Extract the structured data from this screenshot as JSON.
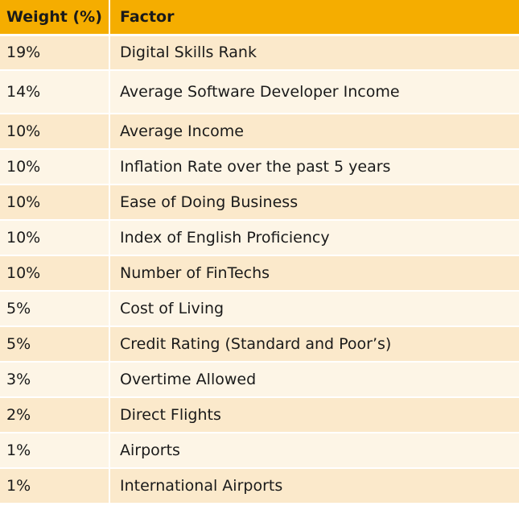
{
  "table": {
    "headers": {
      "weight": "Weight (%)",
      "factor": "Factor"
    },
    "rows": [
      {
        "weight": "19%",
        "factor": "Digital Skills Rank"
      },
      {
        "weight": "14%",
        "factor": "Average Software Developer Income"
      },
      {
        "weight": "10%",
        "factor": "Average Income"
      },
      {
        "weight": "10%",
        "factor": "Inflation Rate over the past 5 years"
      },
      {
        "weight": "10%",
        "factor": "Ease of Doing Business"
      },
      {
        "weight": "10%",
        "factor": "Index of English Proficiency"
      },
      {
        "weight": "10%",
        "factor": "Number of FinTechs"
      },
      {
        "weight": "5%",
        "factor": "Cost of Living"
      },
      {
        "weight": "5%",
        "factor": "Credit Rating (Standard and Poor’s)"
      },
      {
        "weight": "3%",
        "factor": "Overtime Allowed"
      },
      {
        "weight": "2%",
        "factor": "Direct Flights"
      },
      {
        "weight": "1%",
        "factor": "Airports"
      },
      {
        "weight": "1%",
        "factor": "International Airports"
      }
    ],
    "colors": {
      "header_bg": "#f5ad00",
      "row_dark": "#fbe9cb",
      "row_light": "#fdf5e6"
    }
  }
}
